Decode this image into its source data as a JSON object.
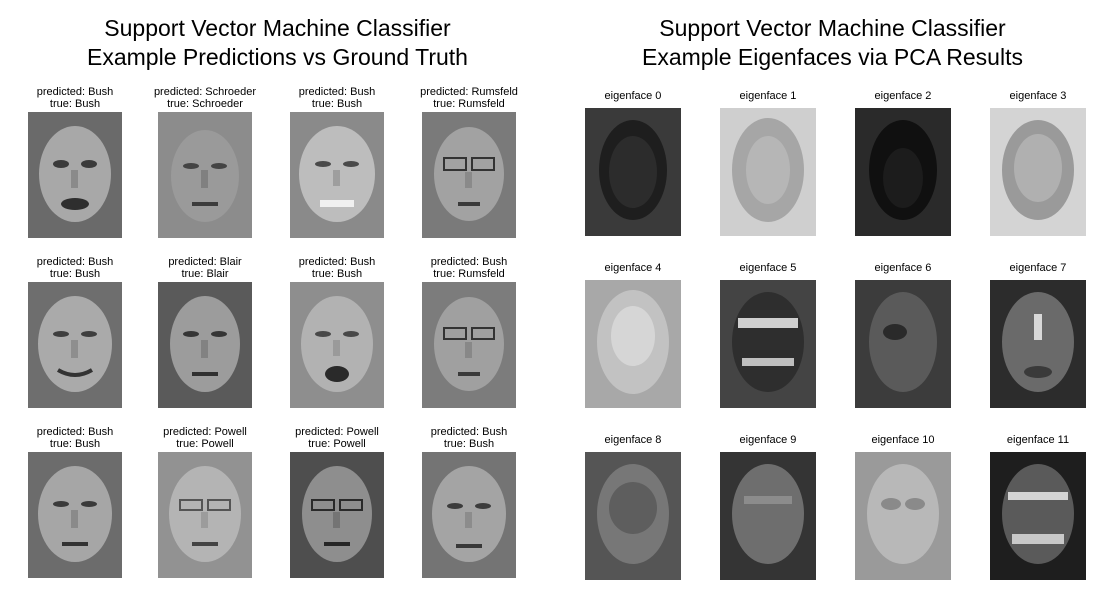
{
  "left_panel": {
    "title_line1": "Support Vector Machine Classifier",
    "title_line2": "Example Predictions vs Ground Truth",
    "items": [
      {
        "predicted": "predicted: Bush",
        "true": "true:      Bush"
      },
      {
        "predicted": "predicted: Schroeder",
        "true": "true:      Schroeder"
      },
      {
        "predicted": "predicted: Bush",
        "true": "true:      Bush"
      },
      {
        "predicted": "predicted: Rumsfeld",
        "true": "true:      Rumsfeld"
      },
      {
        "predicted": "predicted: Bush",
        "true": "true:      Bush"
      },
      {
        "predicted": "predicted: Blair",
        "true": "true:      Blair"
      },
      {
        "predicted": "predicted: Bush",
        "true": "true:      Bush"
      },
      {
        "predicted": "predicted: Bush",
        "true": "true:      Rumsfeld"
      },
      {
        "predicted": "predicted: Bush",
        "true": "true:      Bush"
      },
      {
        "predicted": "predicted: Powell",
        "true": "true:      Powell"
      },
      {
        "predicted": "predicted: Powell",
        "true": "true:      Powell"
      },
      {
        "predicted": "predicted: Bush",
        "true": "true:      Bush"
      }
    ]
  },
  "right_panel": {
    "title_line1": "Support Vector Machine Classifier",
    "title_line2": "Example Eigenfaces via PCA Results",
    "items": [
      {
        "label": "eigenface 0"
      },
      {
        "label": "eigenface 1"
      },
      {
        "label": "eigenface 2"
      },
      {
        "label": "eigenface 3"
      },
      {
        "label": "eigenface 4"
      },
      {
        "label": "eigenface 5"
      },
      {
        "label": "eigenface 6"
      },
      {
        "label": "eigenface 7"
      },
      {
        "label": "eigenface 8"
      },
      {
        "label": "eigenface 9"
      },
      {
        "label": "eigenface 10"
      },
      {
        "label": "eigenface 11"
      }
    ]
  }
}
